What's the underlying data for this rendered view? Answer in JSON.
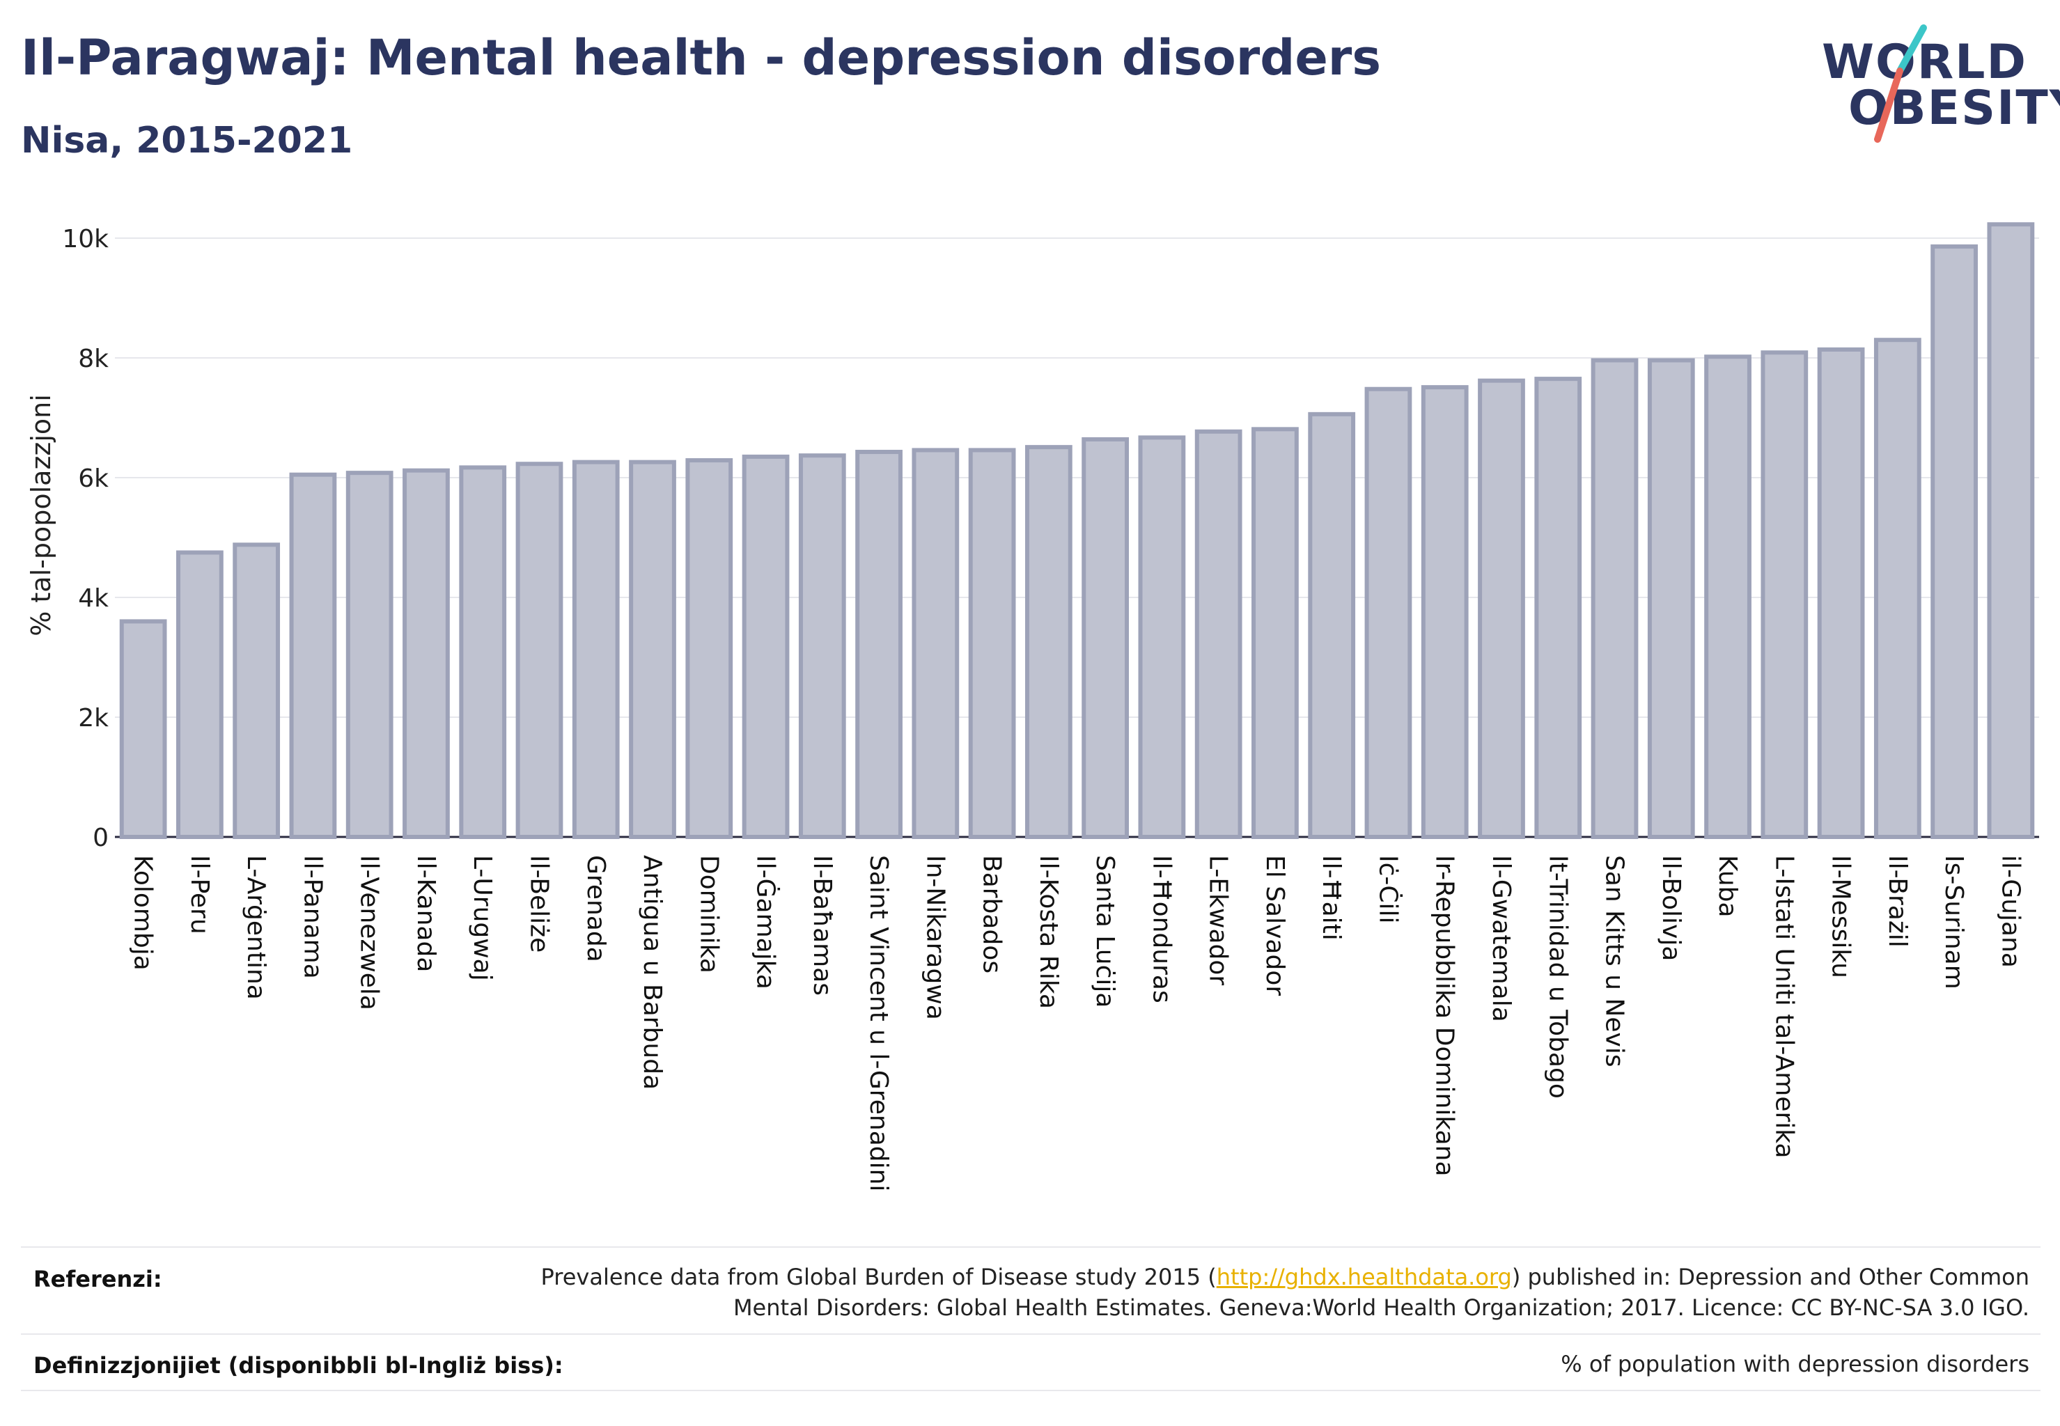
{
  "header": {
    "title": "Il-Paragwaj: Mental health - depression disorders",
    "subtitle": "Nisa, 2015-2021"
  },
  "logo": {
    "line1": "WORLD",
    "line2": "OBESITY",
    "slash_colors": [
      "#3cc6c8",
      "#e8675a"
    ]
  },
  "colors": {
    "bar_fill": "#bfc2d0",
    "bar_stroke": "#9da2b8",
    "text": "#2b3560",
    "link": "#e8b100"
  },
  "chart_data": {
    "type": "bar",
    "title": "Il-Paragwaj: Mental health - depression disorders",
    "subtitle": "Nisa, 2015-2021",
    "ylabel": "% tal-popolazzjoni",
    "xlabel": "",
    "ylim": [
      0,
      10500
    ],
    "yticks": [
      0,
      2000,
      4000,
      6000,
      8000,
      10000
    ],
    "ytick_labels": [
      "0",
      "2k",
      "4k",
      "6k",
      "8k",
      "10k"
    ],
    "grid": true,
    "categories": [
      "Kolombja",
      "Il-Peru",
      "L-Arġentina",
      "Il-Panama",
      "Il-Venezwela",
      "Il-Kanada",
      "L-Urugwaj",
      "Il-Beliże",
      "Grenada",
      "Antigua u Barbuda",
      "Dominika",
      "Il-Ġamajka",
      "Il-Baħamas",
      "Saint Vincent u l-Grenadini",
      "In-Nikaragwa",
      "Barbados",
      "Il-Kosta Rika",
      "Santa Luċija",
      "Il-Ħonduras",
      "L-Ekwador",
      "El Salvador",
      "Il-Ħaiti",
      "Iċ-Ċili",
      "Ir-Repubblika Dominikana",
      "Il-Gwatemala",
      "It-Trinidad u Tobago",
      "San Kitts u Nevis",
      "Il-Bolivja",
      "Kuba",
      "L-Istati Uniti tal-Amerika",
      "Il-Messiku",
      "Il-Brażil",
      "Is-Surinam",
      "il-Gujana"
    ],
    "values": [
      3600,
      4750,
      4880,
      6050,
      6080,
      6120,
      6170,
      6230,
      6260,
      6260,
      6290,
      6350,
      6370,
      6430,
      6460,
      6460,
      6510,
      6640,
      6670,
      6770,
      6810,
      7060,
      7480,
      7510,
      7620,
      7650,
      7960,
      7960,
      8020,
      8090,
      8140,
      8300,
      9860,
      10230
    ]
  },
  "footer": {
    "references_label": "Referenzi:",
    "references_text_before": "Prevalence data from Global Burden of Disease study 2015 (",
    "references_link": "http://ghdx.healthdata.org",
    "references_text_after": ") published in: Depression and Other Common",
    "references_text_line2": "Mental Disorders: Global Health Estimates. Geneva:World Health Organization; 2017. Licence: CC BY-NC-SA 3.0 IGO.",
    "definitions_label": "Definizzjonijiet (disponibbli bl-Ingliż biss):",
    "definitions_text": "% of population with depression disorders"
  }
}
